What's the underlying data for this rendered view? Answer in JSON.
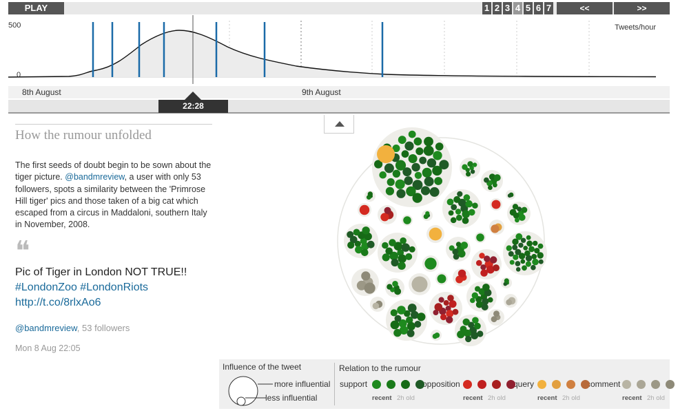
{
  "controls": {
    "play_label": "PLAY",
    "pages": [
      "1",
      "2",
      "3",
      "4",
      "5",
      "6",
      "7"
    ],
    "active_page": "4",
    "prev_label": "<<",
    "next_label": ">>"
  },
  "timeline": {
    "y_max_label": "500",
    "y_min_label": "0",
    "unit_label": "Tweets/hour",
    "date_labels": [
      "8th August",
      "9th August"
    ],
    "current_time": "22:28"
  },
  "story": {
    "title": "How the rumour unfolded",
    "body_pre": "The first seeds of doubt begin to be sown about the tiger picture. ",
    "body_link": "@bandmreview",
    "body_post": ", a user with only 53 followers, spots a similarity between the 'Primrose Hill tiger' pics and those taken of a big cat which escaped from a circus in Maddaloni, southern Italy in November, 2008.",
    "quote_mark": "❝",
    "tweet_line1": "Pic of Tiger in London NOT TRUE!!",
    "tweet_hashtags": "#LondonZoo #LondonRiots",
    "tweet_url": "http://t.co/8rlxAo6",
    "tweet_user": "@bandmreview",
    "tweet_followers": ", 53 followers",
    "tweet_date": "Mon 8 Aug 22:05"
  },
  "legend": {
    "influence_title": "Influence of the tweet",
    "more_label": "more influential",
    "less_label": "less influential",
    "relation_title": "Relation to the rumour",
    "support_label": "support",
    "opposition_label": "opposition",
    "query_label": "query",
    "comment_label": "comment",
    "recent_label": "recent",
    "old_label": "2h old"
  },
  "colors": {
    "support": [
      "#1e8a1e",
      "#1a7a1a",
      "#166a16",
      "#1f5a26"
    ],
    "opposition": [
      "#d42a20",
      "#c02020",
      "#a82020",
      "#902030"
    ],
    "query": [
      "#f2b13e",
      "#e2a040",
      "#d08040",
      "#b86a3a"
    ],
    "comment": [
      "#b8b4a4",
      "#aaa696",
      "#9c9886",
      "#8e8a78"
    ],
    "timeline_marker": "#1a6aa8"
  }
}
